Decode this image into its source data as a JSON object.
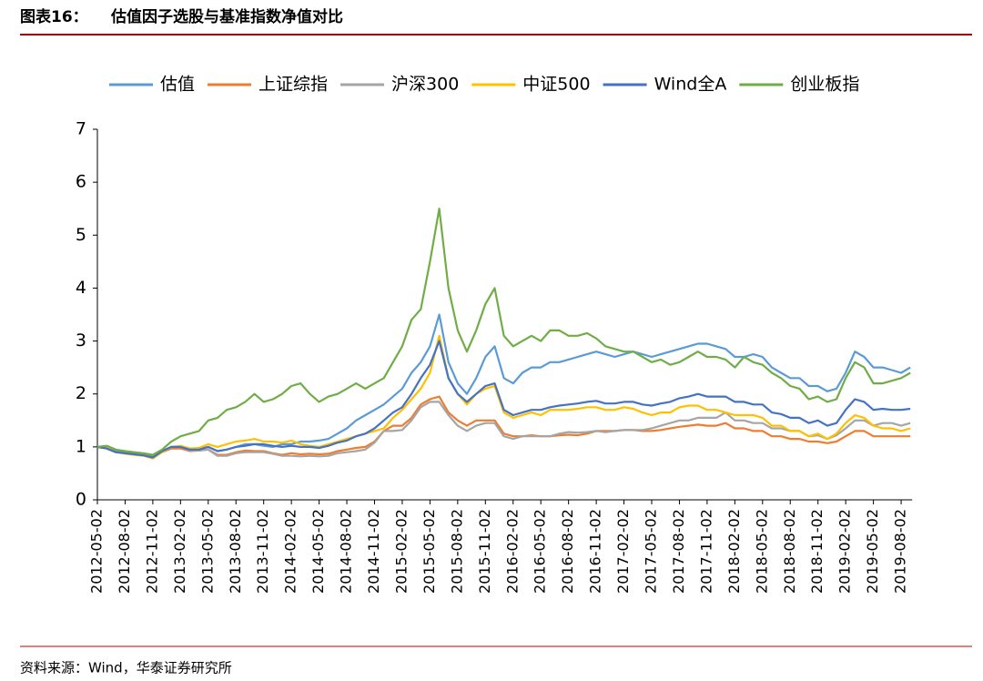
{
  "chart_data": {
    "type": "line",
    "label": "图表16：",
    "title": "估值因子选股与基准指数净值对比",
    "source": "资料来源：Wind，华泰证券研究所",
    "categories": [
      "2012-05-02",
      null,
      null,
      "2012-08-02",
      null,
      null,
      "2012-11-02",
      null,
      null,
      "2013-02-02",
      null,
      null,
      "2013-05-02",
      null,
      null,
      "2013-08-02",
      null,
      null,
      "2013-11-02",
      null,
      null,
      "2014-02-02",
      null,
      null,
      "2014-05-02",
      null,
      null,
      "2014-08-02",
      null,
      null,
      "2014-11-02",
      null,
      null,
      "2015-02-02",
      null,
      null,
      "2015-05-02",
      null,
      null,
      "2015-08-02",
      null,
      null,
      "2015-11-02",
      null,
      null,
      "2016-02-02",
      null,
      null,
      "2016-05-02",
      null,
      null,
      "2016-08-02",
      null,
      null,
      "2016-11-02",
      null,
      null,
      "2017-02-02",
      null,
      null,
      "2017-05-02",
      null,
      null,
      "2017-08-02",
      null,
      null,
      "2017-11-02",
      null,
      null,
      "2018-02-02",
      null,
      null,
      "2018-05-02",
      null,
      null,
      "2018-08-02",
      null,
      null,
      "2018-11-02",
      null,
      null,
      "2019-02-02",
      null,
      null,
      "2019-05-02",
      null,
      null,
      "2019-08-02",
      null
    ],
    "ylim": [
      0,
      7
    ],
    "yticks": [
      0,
      1,
      2,
      3,
      4,
      5,
      6,
      7
    ],
    "grid": false,
    "series": [
      {
        "name": "估值",
        "color": "#5b9bd5",
        "values": [
          1.0,
          0.97,
          0.92,
          0.9,
          0.88,
          0.85,
          0.82,
          0.92,
          1.0,
          1.0,
          0.95,
          0.97,
          1.0,
          0.92,
          0.95,
          1.0,
          1.05,
          1.05,
          1.02,
          1.0,
          1.05,
          1.05,
          1.1,
          1.1,
          1.12,
          1.15,
          1.25,
          1.35,
          1.5,
          1.6,
          1.7,
          1.8,
          1.95,
          2.1,
          2.4,
          2.6,
          2.9,
          3.5,
          2.6,
          2.2,
          2.0,
          2.3,
          2.7,
          2.9,
          2.3,
          2.2,
          2.4,
          2.5,
          2.5,
          2.6,
          2.6,
          2.65,
          2.7,
          2.75,
          2.8,
          2.75,
          2.7,
          2.75,
          2.8,
          2.75,
          2.7,
          2.75,
          2.8,
          2.85,
          2.9,
          2.95,
          2.95,
          2.9,
          2.85,
          2.7,
          2.7,
          2.75,
          2.7,
          2.5,
          2.4,
          2.3,
          2.3,
          2.15,
          2.15,
          2.05,
          2.1,
          2.4,
          2.8,
          2.7,
          2.5,
          2.5,
          2.45,
          2.4,
          2.5
        ]
      },
      {
        "name": "上证综指",
        "color": "#ed7d31",
        "values": [
          1.0,
          0.97,
          0.9,
          0.88,
          0.86,
          0.85,
          0.8,
          0.9,
          0.97,
          0.97,
          0.92,
          0.93,
          0.95,
          0.85,
          0.85,
          0.9,
          0.93,
          0.92,
          0.92,
          0.88,
          0.85,
          0.88,
          0.86,
          0.87,
          0.86,
          0.87,
          0.92,
          0.95,
          0.98,
          1.0,
          1.1,
          1.3,
          1.4,
          1.4,
          1.55,
          1.8,
          1.9,
          1.95,
          1.65,
          1.5,
          1.4,
          1.5,
          1.5,
          1.5,
          1.25,
          1.2,
          1.2,
          1.22,
          1.2,
          1.2,
          1.22,
          1.23,
          1.22,
          1.25,
          1.3,
          1.3,
          1.3,
          1.32,
          1.32,
          1.3,
          1.3,
          1.32,
          1.35,
          1.38,
          1.4,
          1.42,
          1.4,
          1.4,
          1.45,
          1.35,
          1.35,
          1.3,
          1.3,
          1.2,
          1.2,
          1.15,
          1.15,
          1.1,
          1.1,
          1.07,
          1.1,
          1.2,
          1.3,
          1.3,
          1.2,
          1.2,
          1.2,
          1.2,
          1.2
        ]
      },
      {
        "name": "沪深300",
        "color": "#a5a5a5",
        "values": [
          1.0,
          0.97,
          0.9,
          0.88,
          0.86,
          0.85,
          0.8,
          0.92,
          1.0,
          1.0,
          0.93,
          0.93,
          0.95,
          0.83,
          0.83,
          0.88,
          0.9,
          0.9,
          0.9,
          0.87,
          0.83,
          0.83,
          0.82,
          0.83,
          0.82,
          0.83,
          0.88,
          0.9,
          0.92,
          0.95,
          1.08,
          1.3,
          1.3,
          1.32,
          1.5,
          1.75,
          1.85,
          1.85,
          1.6,
          1.4,
          1.3,
          1.4,
          1.45,
          1.45,
          1.2,
          1.15,
          1.2,
          1.2,
          1.2,
          1.2,
          1.25,
          1.28,
          1.27,
          1.28,
          1.3,
          1.28,
          1.3,
          1.32,
          1.32,
          1.32,
          1.35,
          1.4,
          1.45,
          1.5,
          1.5,
          1.55,
          1.55,
          1.55,
          1.65,
          1.5,
          1.5,
          1.45,
          1.45,
          1.35,
          1.35,
          1.3,
          1.3,
          1.2,
          1.22,
          1.15,
          1.22,
          1.35,
          1.5,
          1.5,
          1.4,
          1.45,
          1.45,
          1.4,
          1.45
        ]
      },
      {
        "name": "中证500",
        "color": "#ffc000",
        "values": [
          1.0,
          0.98,
          0.9,
          0.87,
          0.85,
          0.83,
          0.78,
          0.9,
          1.0,
          1.02,
          0.97,
          0.98,
          1.05,
          1.0,
          1.05,
          1.1,
          1.12,
          1.15,
          1.1,
          1.1,
          1.08,
          1.12,
          1.05,
          1.02,
          1.0,
          1.05,
          1.1,
          1.15,
          1.2,
          1.25,
          1.3,
          1.35,
          1.55,
          1.7,
          1.9,
          2.1,
          2.4,
          3.1,
          2.3,
          2.0,
          1.8,
          2.0,
          2.1,
          2.15,
          1.65,
          1.55,
          1.6,
          1.65,
          1.6,
          1.7,
          1.7,
          1.7,
          1.72,
          1.75,
          1.75,
          1.7,
          1.7,
          1.75,
          1.72,
          1.65,
          1.6,
          1.65,
          1.65,
          1.75,
          1.78,
          1.78,
          1.7,
          1.7,
          1.65,
          1.6,
          1.6,
          1.6,
          1.55,
          1.4,
          1.4,
          1.3,
          1.3,
          1.2,
          1.25,
          1.15,
          1.25,
          1.45,
          1.6,
          1.55,
          1.4,
          1.35,
          1.35,
          1.3,
          1.35
        ]
      },
      {
        "name": "Wind全A",
        "color": "#4472c4",
        "values": [
          1.0,
          0.97,
          0.9,
          0.88,
          0.86,
          0.84,
          0.8,
          0.92,
          1.0,
          1.0,
          0.95,
          0.95,
          1.0,
          0.92,
          0.95,
          1.0,
          1.02,
          1.05,
          1.05,
          1.02,
          1.0,
          1.02,
          1.0,
          1.0,
          0.98,
          1.02,
          1.08,
          1.12,
          1.2,
          1.25,
          1.35,
          1.5,
          1.65,
          1.75,
          2.0,
          2.3,
          2.55,
          3.0,
          2.3,
          2.0,
          1.85,
          2.0,
          2.15,
          2.2,
          1.7,
          1.6,
          1.65,
          1.7,
          1.7,
          1.75,
          1.78,
          1.8,
          1.82,
          1.85,
          1.87,
          1.82,
          1.82,
          1.85,
          1.85,
          1.8,
          1.78,
          1.82,
          1.85,
          1.92,
          1.95,
          2.0,
          1.95,
          1.95,
          1.95,
          1.85,
          1.85,
          1.8,
          1.8,
          1.65,
          1.62,
          1.55,
          1.55,
          1.45,
          1.5,
          1.4,
          1.45,
          1.7,
          1.9,
          1.85,
          1.7,
          1.72,
          1.7,
          1.7,
          1.72
        ]
      },
      {
        "name": "创业板指",
        "color": "#70ad47",
        "values": [
          1.0,
          1.02,
          0.95,
          0.92,
          0.9,
          0.88,
          0.85,
          0.95,
          1.1,
          1.2,
          1.25,
          1.3,
          1.5,
          1.55,
          1.7,
          1.75,
          1.85,
          2.0,
          1.85,
          1.9,
          2.0,
          2.15,
          2.2,
          2.0,
          1.85,
          1.95,
          2.0,
          2.1,
          2.2,
          2.1,
          2.2,
          2.3,
          2.6,
          2.9,
          3.4,
          3.6,
          4.5,
          5.5,
          4.0,
          3.2,
          2.8,
          3.2,
          3.7,
          4.0,
          3.1,
          2.9,
          3.0,
          3.1,
          3.0,
          3.2,
          3.2,
          3.1,
          3.1,
          3.15,
          3.05,
          2.9,
          2.85,
          2.8,
          2.8,
          2.7,
          2.6,
          2.65,
          2.55,
          2.6,
          2.7,
          2.8,
          2.7,
          2.7,
          2.65,
          2.5,
          2.7,
          2.6,
          2.55,
          2.4,
          2.3,
          2.15,
          2.1,
          1.9,
          1.95,
          1.85,
          1.9,
          2.3,
          2.6,
          2.5,
          2.2,
          2.2,
          2.25,
          2.3,
          2.4
        ]
      }
    ]
  }
}
